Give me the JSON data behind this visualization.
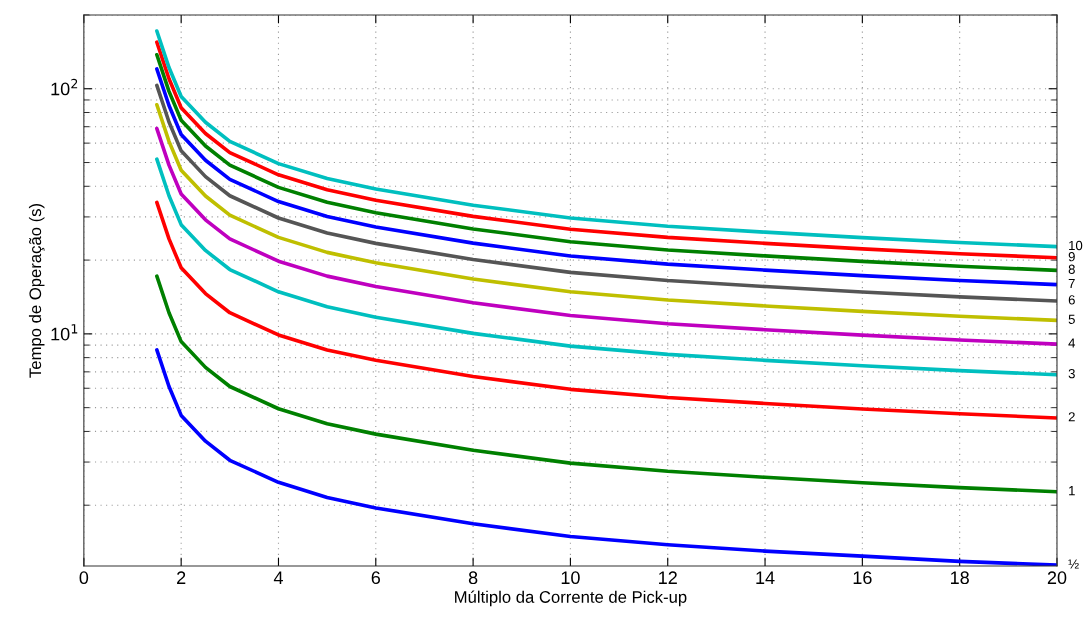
{
  "chart_data": {
    "type": "line",
    "xlabel": "Múltiplo da Corrente de Pick-up",
    "ylabel": "Tempo de Operação (s)",
    "x": [
      1.5,
      1.75,
      2,
      2.5,
      3,
      4,
      5,
      6,
      8,
      10,
      12,
      14,
      16,
      18,
      20
    ],
    "xlim": [
      0,
      20
    ],
    "xticks": [
      0,
      2,
      4,
      6,
      8,
      10,
      12,
      14,
      16,
      18,
      20
    ],
    "ylim": [
      1.13,
      200
    ],
    "yticks": [
      {
        "value": 10,
        "label": "10$^{1}$"
      },
      {
        "value": 100,
        "label": "10$^{2}$"
      }
    ],
    "log": "y",
    "grid": true,
    "legend": false,
    "marker": "none",
    "line_style": "solid",
    "series": [
      {
        "name": "½",
        "color": "#0000ff",
        "values": [
          8.6,
          6.1,
          4.65,
          3.65,
          3.05,
          2.48,
          2.15,
          1.95,
          1.68,
          1.49,
          1.38,
          1.3,
          1.24,
          1.18,
          1.14
        ]
      },
      {
        "name": "1",
        "color": "#008000",
        "values": [
          17.2,
          12.2,
          9.3,
          7.3,
          6.1,
          4.95,
          4.3,
          3.9,
          3.35,
          2.97,
          2.75,
          2.6,
          2.47,
          2.36,
          2.27
        ]
      },
      {
        "name": "2",
        "color": "#ff0000",
        "values": [
          34.4,
          24.4,
          18.6,
          14.6,
          12.2,
          9.9,
          8.6,
          7.8,
          6.7,
          5.94,
          5.5,
          5.2,
          4.94,
          4.72,
          4.54
        ]
      },
      {
        "name": "3",
        "color": "#00bfbf",
        "values": [
          51.6,
          36.6,
          27.9,
          21.9,
          18.3,
          14.85,
          12.9,
          11.7,
          10.05,
          8.91,
          8.25,
          7.8,
          7.41,
          7.08,
          6.81
        ]
      },
      {
        "name": "4",
        "color": "#bf00bf",
        "values": [
          68.8,
          48.8,
          37.2,
          29.2,
          24.4,
          19.8,
          17.2,
          15.6,
          13.4,
          11.88,
          11,
          10.4,
          9.88,
          9.44,
          9.08
        ]
      },
      {
        "name": "5",
        "color": "#bfbf00",
        "values": [
          86,
          61,
          46.5,
          36.5,
          30.5,
          24.75,
          21.5,
          19.5,
          16.75,
          14.85,
          13.75,
          13,
          12.35,
          11.8,
          11.35
        ]
      },
      {
        "name": "6",
        "color": "#555555",
        "values": [
          103.2,
          73.2,
          55.8,
          43.8,
          36.6,
          29.7,
          25.8,
          23.4,
          20.1,
          17.82,
          16.5,
          15.6,
          14.82,
          14.16,
          13.62
        ]
      },
      {
        "name": "7",
        "color": "#0000ff",
        "values": [
          120.4,
          85.4,
          65.1,
          51.1,
          42.7,
          34.65,
          30.1,
          27.3,
          23.45,
          20.79,
          19.25,
          18.2,
          17.29,
          16.52,
          15.89
        ]
      },
      {
        "name": "8",
        "color": "#008000",
        "values": [
          137.6,
          97.6,
          74.4,
          58.4,
          48.8,
          39.6,
          34.4,
          31.2,
          26.8,
          23.76,
          22,
          20.8,
          19.76,
          18.88,
          18.16
        ]
      },
      {
        "name": "9",
        "color": "#ff0000",
        "values": [
          154.8,
          109.8,
          83.7,
          65.7,
          54.9,
          44.55,
          38.7,
          35.1,
          30.15,
          26.73,
          24.75,
          23.4,
          22.23,
          21.24,
          20.43
        ]
      },
      {
        "name": "10",
        "color": "#00bfbf",
        "values": [
          172,
          122,
          93,
          73,
          61,
          49.5,
          43,
          39,
          33.5,
          29.7,
          27.5,
          26,
          24.7,
          23.6,
          22.7
        ]
      }
    ]
  }
}
